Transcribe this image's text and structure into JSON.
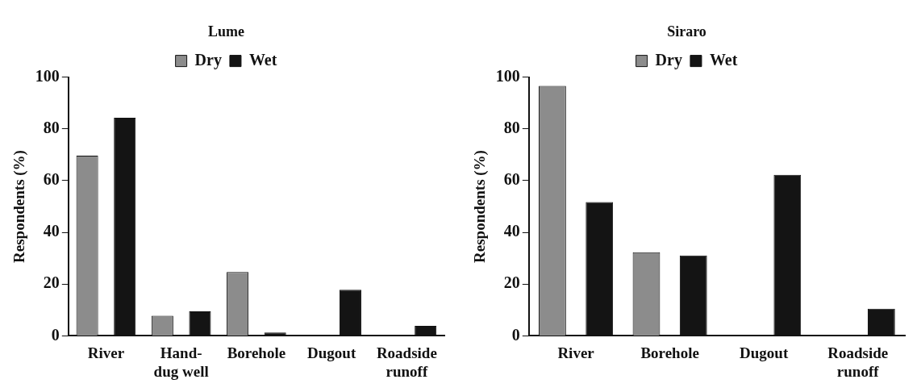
{
  "chart_data": [
    {
      "type": "bar",
      "title": "Lume",
      "ylabel": "Respondents (%)",
      "categories": [
        "River",
        "Hand-dug well",
        "Borehole",
        "Dugout",
        "Roadside runoff"
      ],
      "series": [
        {
          "name": "Dry",
          "color": "#8c8c8c",
          "values": [
            69.6,
            7.8,
            24.7,
            0,
            0
          ]
        },
        {
          "name": "Wet",
          "color": "#141414",
          "values": [
            84.3,
            9.5,
            1.3,
            17.8,
            3.9
          ]
        }
      ],
      "ylim": [
        0,
        100
      ],
      "yticks": [
        0,
        20,
        40,
        60,
        80,
        100
      ],
      "grid": false,
      "legend": "top"
    },
    {
      "type": "bar",
      "title": "Siraro",
      "ylabel": "Respondents (%)",
      "categories": [
        "River",
        "Borehole",
        "Dugout",
        "Roadside runoff"
      ],
      "series": [
        {
          "name": "Dry",
          "color": "#8c8c8c",
          "values": [
            96.6,
            32.3,
            0,
            0
          ]
        },
        {
          "name": "Wet",
          "color": "#141414",
          "values": [
            51.7,
            31.1,
            62.2,
            10.5
          ]
        }
      ],
      "ylim": [
        0,
        100
      ],
      "yticks": [
        0,
        20,
        40,
        60,
        80,
        100
      ],
      "grid": false,
      "legend": "top"
    }
  ]
}
